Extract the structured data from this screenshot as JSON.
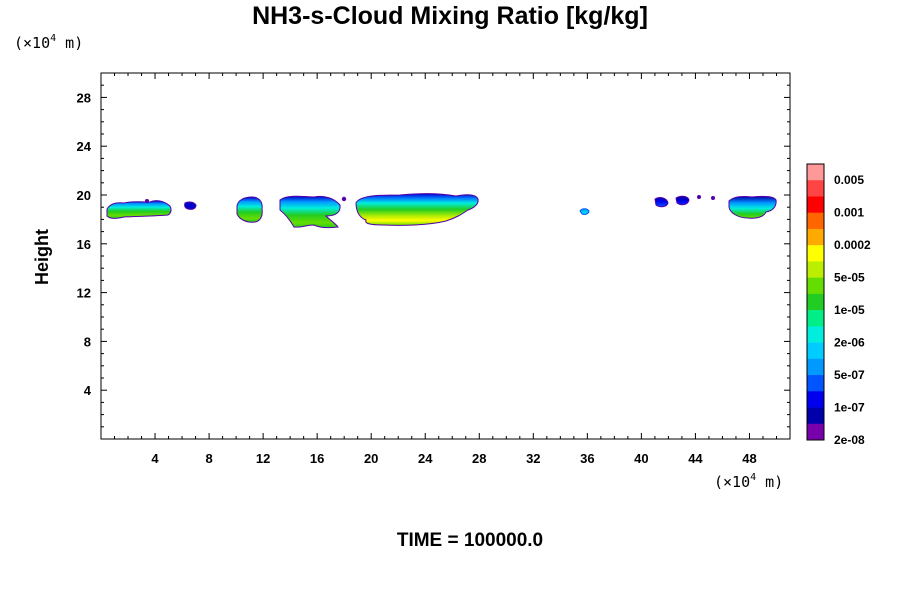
{
  "chart_data": {
    "type": "heatmap",
    "title": "NH3-s-Cloud Mixing Ratio [kg/kg]",
    "xlabel": "",
    "ylabel": "Height",
    "x_unit": {
      "prefix": "(×10",
      "exp": "4",
      "suffix": " m)"
    },
    "y_unit": {
      "prefix": "(×10",
      "exp": "4",
      "suffix": " m)"
    },
    "xlim": [
      0,
      51
    ],
    "ylim": [
      0,
      30
    ],
    "x_ticks": [
      4,
      8,
      12,
      16,
      20,
      24,
      28,
      32,
      36,
      40,
      44,
      48
    ],
    "y_ticks": [
      4,
      8,
      12,
      16,
      20,
      24,
      28
    ],
    "colorbar": {
      "labels": [
        "0.005",
        "0.001",
        "0.0002",
        "5e-05",
        "1e-05",
        "2e-06",
        "5e-07",
        "1e-07",
        "2e-08"
      ],
      "colors": [
        "#ff9999",
        "#ff4444",
        "#ff0000",
        "#ff6600",
        "#ffaa00",
        "#ffff00",
        "#bbee00",
        "#66dd00",
        "#22cc22",
        "#00ee88",
        "#00eedd",
        "#00ccff",
        "#0099ff",
        "#0055ff",
        "#0000ee",
        "#0000aa",
        "#7700aa"
      ]
    },
    "cloud_regions": [
      {
        "x": [
          0.5,
          5.5
        ],
        "y": [
          17.8,
          19.5
        ],
        "peak": "5e-06"
      },
      {
        "x": [
          6.2,
          7.0
        ],
        "y": [
          18.8,
          19.3
        ],
        "peak": "1e-07"
      },
      {
        "x": [
          10.0,
          12.0
        ],
        "y": [
          17.3,
          19.8
        ],
        "peak": "1e-05"
      },
      {
        "x": [
          13.2,
          18.0
        ],
        "y": [
          17.3,
          20.0
        ],
        "peak": "1e-05"
      },
      {
        "x": [
          18.0,
          28.0
        ],
        "y": [
          17.4,
          20.2
        ],
        "peak": "0.0002"
      },
      {
        "x": [
          35.5,
          36.2
        ],
        "y": [
          18.2,
          18.7
        ],
        "peak": "5e-07"
      },
      {
        "x": [
          41.0,
          45.5
        ],
        "y": [
          19.1,
          19.8
        ],
        "peak": "1e-07"
      },
      {
        "x": [
          46.5,
          49.5
        ],
        "y": [
          17.8,
          19.8
        ],
        "peak": "1e-05"
      }
    ]
  },
  "footer": {
    "time_label": "TIME = 100000.0"
  }
}
